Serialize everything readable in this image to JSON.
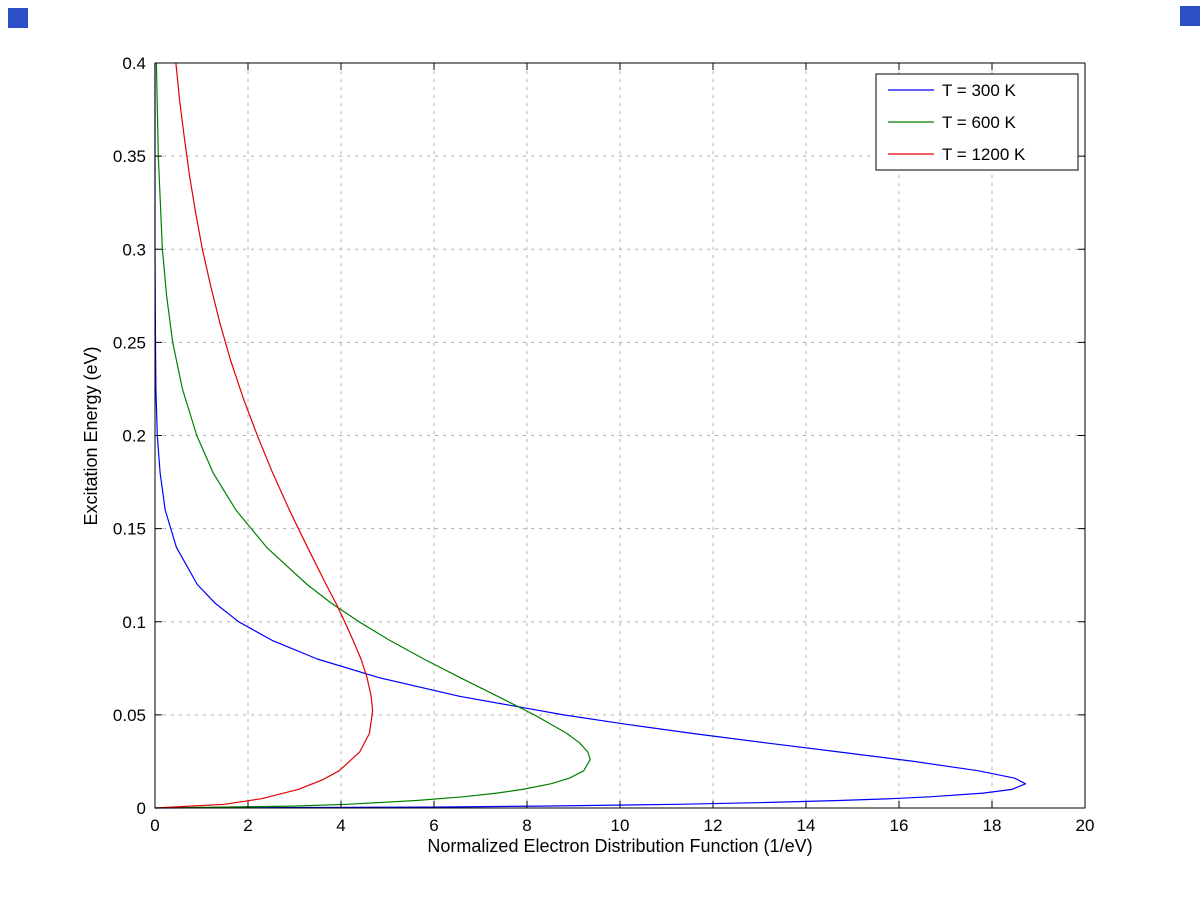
{
  "figure": {
    "background": "#ffffff",
    "decoration_color": "#2b50c8"
  },
  "chart_data": {
    "type": "line",
    "title": "",
    "xlabel": "Normalized Electron Distribution Function (1/eV)",
    "ylabel": "Excitation Energy (eV)",
    "xlim": [
      0,
      20
    ],
    "ylim": [
      0,
      0.4
    ],
    "xticks": [
      0,
      2,
      4,
      6,
      8,
      10,
      12,
      14,
      16,
      18,
      20
    ],
    "xtick_labels": [
      "0",
      "2",
      "4",
      "6",
      "8",
      "10",
      "12",
      "14",
      "16",
      "18",
      "20"
    ],
    "yticks": [
      0,
      0.05,
      0.1,
      0.15,
      0.2,
      0.25,
      0.3,
      0.35,
      0.4
    ],
    "ytick_labels": [
      "0",
      "0.05",
      "0.1",
      "0.15",
      "0.2",
      "0.25",
      "0.3",
      "0.35",
      "0.4"
    ],
    "grid": true,
    "grid_style": "dashed",
    "legend_position": "top-right",
    "point_format": "[distribution_value_x_1_per_eV, excitation_energy_y_eV]",
    "colors": {
      "axis": "#000000",
      "grid": "#b0b0b0",
      "legend_border": "#000000",
      "background": "#ffffff"
    },
    "series": [
      {
        "name": "T = 300 K",
        "color": "#0000ff",
        "peak": {
          "x": 18.7,
          "y": 0.013
        },
        "points": [
          [
            0,
            0
          ],
          [
            5.95,
            0.0005
          ],
          [
            8.26,
            0.001
          ],
          [
            11.24,
            0.002
          ],
          [
            13.24,
            0.003
          ],
          [
            14.71,
            0.004
          ],
          [
            15.82,
            0.005
          ],
          [
            16.67,
            0.006
          ],
          [
            17.81,
            0.008
          ],
          [
            18.43,
            0.01
          ],
          [
            18.72,
            0.013
          ],
          [
            18.49,
            0.016
          ],
          [
            17.71,
            0.02
          ],
          [
            16.32,
            0.025
          ],
          [
            14.74,
            0.03
          ],
          [
            13.13,
            0.035
          ],
          [
            11.57,
            0.04
          ],
          [
            10.12,
            0.045
          ],
          [
            8.79,
            0.05
          ],
          [
            6.55,
            0.06
          ],
          [
            4.81,
            0.07
          ],
          [
            3.49,
            0.08
          ],
          [
            2.52,
            0.09
          ],
          [
            1.8,
            0.1
          ],
          [
            1.29,
            0.11
          ],
          [
            0.91,
            0.12
          ],
          [
            0.46,
            0.14
          ],
          [
            0.22,
            0.16
          ],
          [
            0.11,
            0.18
          ],
          [
            0.05,
            0.2
          ],
          [
            0.02,
            0.225
          ],
          [
            0.01,
            0.25
          ],
          [
            0.0,
            0.3
          ],
          [
            0.0,
            0.4
          ]
        ]
      },
      {
        "name": "T = 600 K",
        "color": "#008000",
        "peak": {
          "x": 9.36,
          "y": 0.026
        },
        "points": [
          [
            0,
            0
          ],
          [
            2.98,
            0.001
          ],
          [
            4.13,
            0.002
          ],
          [
            5.62,
            0.004
          ],
          [
            6.62,
            0.006
          ],
          [
            7.35,
            0.008
          ],
          [
            7.91,
            0.01
          ],
          [
            8.51,
            0.013
          ],
          [
            8.91,
            0.016
          ],
          [
            9.22,
            0.02
          ],
          [
            9.36,
            0.026
          ],
          [
            9.31,
            0.03
          ],
          [
            9.13,
            0.035
          ],
          [
            8.86,
            0.04
          ],
          [
            8.16,
            0.05
          ],
          [
            7.37,
            0.06
          ],
          [
            6.56,
            0.07
          ],
          [
            5.78,
            0.08
          ],
          [
            5.05,
            0.09
          ],
          [
            4.39,
            0.1
          ],
          [
            3.79,
            0.11
          ],
          [
            3.27,
            0.12
          ],
          [
            2.4,
            0.14
          ],
          [
            1.74,
            0.16
          ],
          [
            1.25,
            0.18
          ],
          [
            0.9,
            0.2
          ],
          [
            0.59,
            0.225
          ],
          [
            0.38,
            0.25
          ],
          [
            0.25,
            0.275
          ],
          [
            0.16,
            0.3
          ],
          [
            0.07,
            0.35
          ],
          [
            0.03,
            0.4
          ]
        ]
      },
      {
        "name": "T = 1200 K",
        "color": "#e00000",
        "peak": {
          "x": 4.68,
          "y": 0.052
        },
        "points": [
          [
            0,
            0
          ],
          [
            1.49,
            0.002
          ],
          [
            2.29,
            0.005
          ],
          [
            3.08,
            0.01
          ],
          [
            3.59,
            0.015
          ],
          [
            3.96,
            0.02
          ],
          [
            4.4,
            0.03
          ],
          [
            4.61,
            0.04
          ],
          [
            4.68,
            0.052
          ],
          [
            4.65,
            0.06
          ],
          [
            4.56,
            0.07
          ],
          [
            4.43,
            0.08
          ],
          [
            4.26,
            0.09
          ],
          [
            4.08,
            0.1
          ],
          [
            3.89,
            0.11
          ],
          [
            3.68,
            0.12
          ],
          [
            3.48,
            0.13
          ],
          [
            3.28,
            0.14
          ],
          [
            2.89,
            0.16
          ],
          [
            2.53,
            0.18
          ],
          [
            2.2,
            0.2
          ],
          [
            1.9,
            0.22
          ],
          [
            1.63,
            0.24
          ],
          [
            1.4,
            0.26
          ],
          [
            1.2,
            0.28
          ],
          [
            1.02,
            0.3
          ],
          [
            0.87,
            0.32
          ],
          [
            0.74,
            0.34
          ],
          [
            0.63,
            0.36
          ],
          [
            0.53,
            0.38
          ],
          [
            0.45,
            0.4
          ]
        ]
      }
    ]
  }
}
